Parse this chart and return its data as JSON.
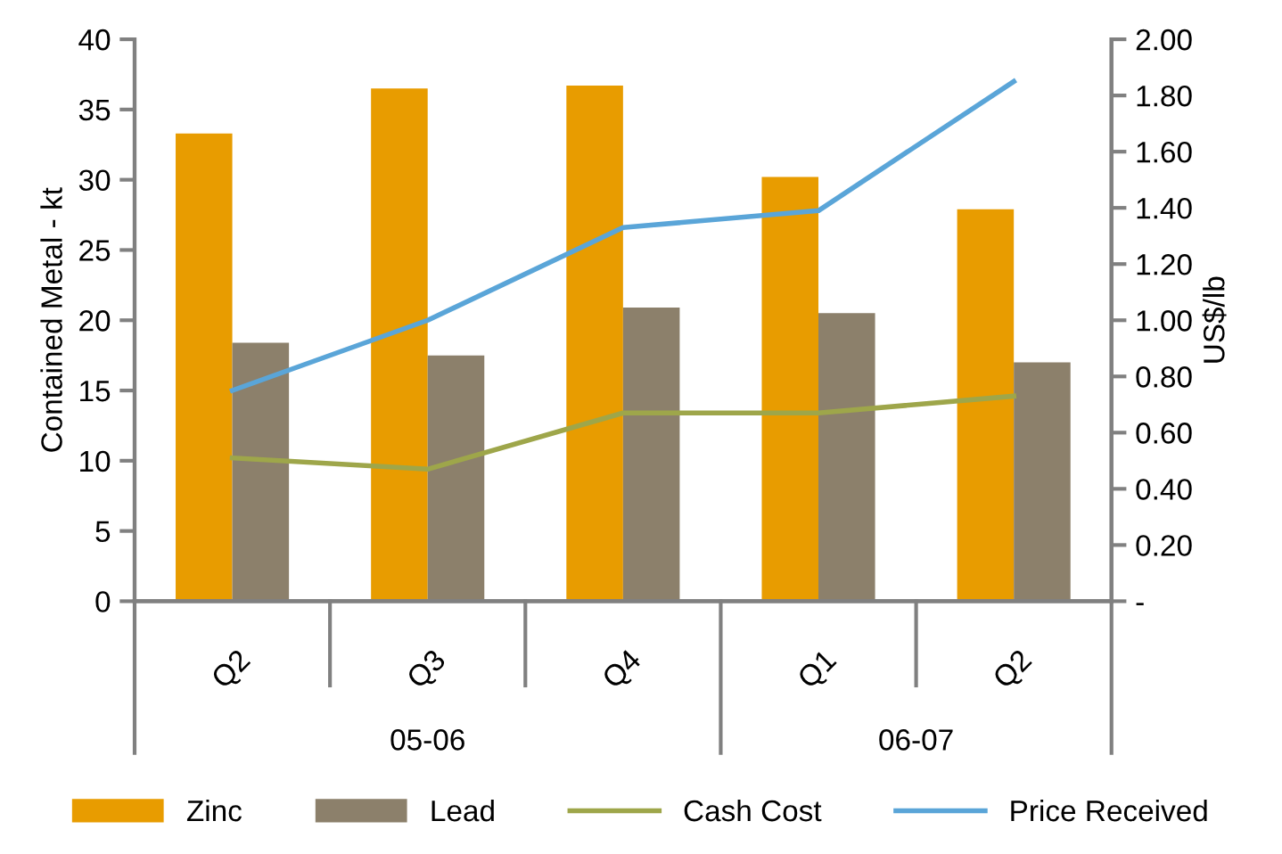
{
  "chart_data": {
    "type": "bar",
    "categories": [
      "Q2",
      "Q3",
      "Q4",
      "Q1",
      "Q2"
    ],
    "series": [
      {
        "name": "Zinc",
        "color": "#e89c00",
        "values": [
          33.3,
          36.5,
          36.7,
          30.2,
          27.9
        ]
      },
      {
        "name": "Lead",
        "color": "#8c806b",
        "values": [
          18.4,
          17.5,
          20.9,
          20.5,
          17.0
        ]
      },
      {
        "name": "Cash Cost",
        "type": "line",
        "axis": "y2",
        "color": "#9ea64a",
        "values": [
          0.51,
          0.47,
          0.67,
          0.67,
          0.73
        ]
      },
      {
        "name": "Price Received",
        "type": "line",
        "axis": "y2",
        "color": "#5aa5d8",
        "values": [
          0.75,
          1.0,
          1.33,
          1.39,
          1.85
        ]
      }
    ],
    "ylabel": "Contained Metal - kt",
    "y2label": "US$/lb",
    "ylim": [
      0,
      40
    ],
    "yticks": [
      0,
      5,
      10,
      15,
      20,
      25,
      30,
      35,
      40
    ],
    "y2lim": [
      0,
      2
    ],
    "y2ticks": [
      {
        "value": 0,
        "label": "-"
      },
      {
        "value": 0.2,
        "label": "0.20"
      },
      {
        "value": 0.4,
        "label": "0.40"
      },
      {
        "value": 0.6,
        "label": "0.60"
      },
      {
        "value": 0.8,
        "label": "0.80"
      },
      {
        "value": 1.0,
        "label": "1.00"
      },
      {
        "value": 1.2,
        "label": "1.20"
      },
      {
        "value": 1.4,
        "label": "1.40"
      },
      {
        "value": 1.6,
        "label": "1.60"
      },
      {
        "value": 1.8,
        "label": "1.80"
      },
      {
        "value": 2.0,
        "label": "2.00"
      }
    ],
    "annotations": [
      "05-06",
      "06-07"
    ],
    "legend": "bottom",
    "grid": false
  }
}
